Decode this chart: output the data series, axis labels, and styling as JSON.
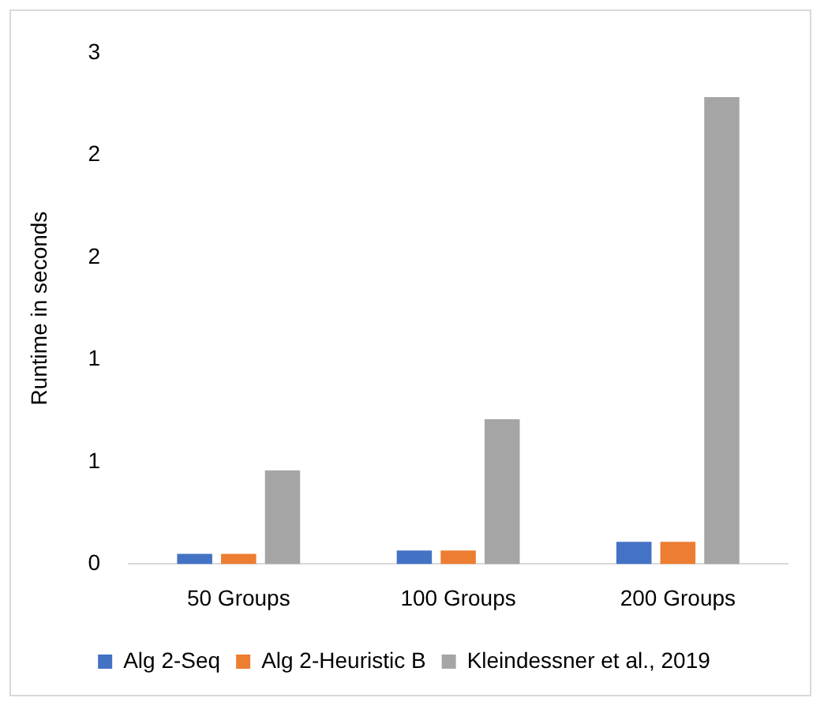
{
  "chart_data": {
    "type": "bar",
    "ylabel": "Runtime in seconds",
    "categories": [
      "50 Groups",
      "100 Groups",
      "200 Groups"
    ],
    "series": [
      {
        "name": "Alg 2-Seq",
        "color": "#4472c4",
        "values": [
          0.06,
          0.08,
          0.13
        ]
      },
      {
        "name": "Alg 2-Heuristic B",
        "color": "#ed7d31",
        "values": [
          0.06,
          0.08,
          0.13
        ]
      },
      {
        "name": "Kleindessner et al., 2019",
        "color": "#a5a5a5",
        "values": [
          0.55,
          0.85,
          2.74
        ]
      }
    ],
    "ylim": [
      0,
      3
    ],
    "yticks": [
      0,
      {
        "value": 0.6,
        "label": "1"
      },
      {
        "value": 1.2,
        "label": "1"
      },
      {
        "value": 1.8,
        "label": "2"
      },
      {
        "value": 2.4,
        "label": "2"
      },
      3
    ],
    "grid": false,
    "legend": "bottom"
  }
}
